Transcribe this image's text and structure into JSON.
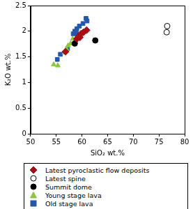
{
  "chart_data": {
    "type": "scatter",
    "x_label": "SiO₂ wt.%",
    "y_label": "K₂O wt.%",
    "xlim": [
      50,
      80
    ],
    "xticks": [
      50,
      55,
      60,
      65,
      70,
      75,
      80
    ],
    "ylim": [
      0,
      2.5
    ],
    "yticks": [
      0,
      0.5,
      1,
      1.5,
      2,
      2.5
    ],
    "grid": false,
    "legend": "bottom",
    "series": [
      {
        "name": "Latest pyroclastic flow deposits",
        "color": "#a50f15",
        "marker": "diamond",
        "values": [
          [
            56.8,
            1.6
          ],
          [
            59.0,
            1.85
          ],
          [
            59.4,
            1.9
          ],
          [
            59.6,
            1.88
          ],
          [
            59.8,
            1.95
          ],
          [
            60.3,
            1.98
          ],
          [
            60.9,
            2.02
          ]
        ]
      },
      {
        "name": "Latest spine",
        "color": "#000000",
        "marker": "open_circle",
        "values": [
          [
            76.5,
            1.98
          ],
          [
            76.6,
            2.1
          ]
        ]
      },
      {
        "name": "Summit dome",
        "color": "#000000",
        "marker": "circle",
        "values": [
          [
            58.6,
            1.76
          ],
          [
            62.6,
            1.82
          ]
        ]
      },
      {
        "name": "Young stage lava",
        "color": "#8dc63f",
        "marker": "triangle",
        "values": [
          [
            54.5,
            1.35
          ],
          [
            55.3,
            1.33
          ],
          [
            56.6,
            1.58
          ],
          [
            57.0,
            1.65
          ],
          [
            57.3,
            1.72
          ],
          [
            57.8,
            1.76
          ],
          [
            58.2,
            1.85
          ]
        ]
      },
      {
        "name": "Old stage lava",
        "color": "#2457a8",
        "marker": "square",
        "values": [
          [
            55.2,
            1.45
          ],
          [
            55.8,
            1.55
          ],
          [
            57.2,
            1.66
          ],
          [
            58.3,
            1.95
          ],
          [
            58.6,
            2.0
          ],
          [
            58.9,
            1.97
          ],
          [
            59.0,
            2.05
          ],
          [
            59.1,
            1.9
          ],
          [
            59.5,
            2.1
          ],
          [
            60.2,
            2.15
          ],
          [
            60.8,
            2.25
          ],
          [
            61.0,
            2.2
          ]
        ]
      }
    ]
  }
}
